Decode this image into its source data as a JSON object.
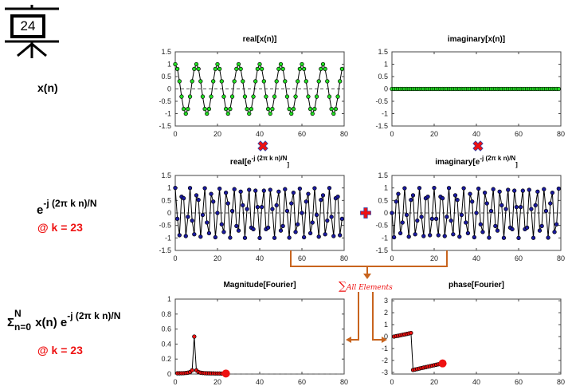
{
  "slide": {
    "number": "24",
    "icon": "presentation-board-icon"
  },
  "row_labels": {
    "xn": "x(n)",
    "basis_base": "e",
    "basis_exp": "-j (2π k n)/N",
    "basis_k": "@ k = 23",
    "sum_sigma": "Σ",
    "sum_upper": "N",
    "sum_lower": "n=0",
    "sum_body": " x(n) e",
    "sum_exp": "-j (2π k n)/N",
    "sum_k": "@ k = 23"
  },
  "operators": {
    "multiply_icon": "multiply-x-icon",
    "plus_icon": "plus-icon",
    "sum_label": "All Elements",
    "sum_symbol": "∑"
  },
  "colors": {
    "green": "#22dd22",
    "blue": "#1a1aa0",
    "red": "#ee1111",
    "orange": "#c8641e"
  },
  "chart_data": [
    {
      "id": "real_x",
      "type": "line",
      "title": "real[x(n)]",
      "series": [
        {
          "name": "real x(n)",
          "color": "#22dd22",
          "freq_cycles": 8,
          "N": 80,
          "func": "cos"
        }
      ],
      "xlim": [
        0,
        80
      ],
      "ylim": [
        -1.5,
        1.5
      ],
      "xticks": [
        "0",
        "20",
        "40",
        "60",
        "80"
      ],
      "yticks": [
        "1.5",
        "1",
        "0.5",
        "0",
        "-0.5",
        "-1",
        "-1.5"
      ],
      "zero_line": true
    },
    {
      "id": "imag_x",
      "type": "line",
      "title": "imaginary[x(n)]",
      "series": [
        {
          "name": "imag x(n)",
          "color": "#22dd22",
          "freq_cycles": 0,
          "N": 80,
          "func": "zero"
        }
      ],
      "xlim": [
        0,
        80
      ],
      "ylim": [
        -1.5,
        1.5
      ],
      "xticks": [
        "0",
        "20",
        "40",
        "60",
        "80"
      ],
      "yticks": [
        "1.5",
        "1",
        "0.5",
        "0",
        "-0.5",
        "-1",
        "-1.5"
      ],
      "zero_line": true
    },
    {
      "id": "real_basis",
      "type": "line",
      "title_pre": "real[e",
      "title_sup": "-j (2π k n)/N",
      "title_post": "]",
      "series": [
        {
          "name": "real basis",
          "color": "#1a1aa0",
          "freq_cycles": 23,
          "N": 80,
          "func": "cos"
        }
      ],
      "xlim": [
        0,
        80
      ],
      "ylim": [
        -1.5,
        1.5
      ],
      "xticks": [
        "0",
        "20",
        "40",
        "60",
        "80"
      ],
      "yticks": [
        "1.5",
        "1",
        "0.5",
        "0",
        "-0.5",
        "-1",
        "-1.5"
      ],
      "zero_line": true
    },
    {
      "id": "imag_basis",
      "type": "line",
      "title_pre": "imaginary[e",
      "title_sup": "-j (2π k n)/N",
      "title_post": "]",
      "series": [
        {
          "name": "imag basis",
          "color": "#1a1aa0",
          "freq_cycles": 23,
          "N": 80,
          "func": "-sin"
        }
      ],
      "xlim": [
        0,
        80
      ],
      "ylim": [
        -1.5,
        1.5
      ],
      "xticks": [
        "0",
        "20",
        "40",
        "60",
        "80"
      ],
      "yticks": [
        "1.5",
        "1",
        "0.5",
        "0",
        "-0.5",
        "-1",
        "-1.5"
      ],
      "zero_line": true
    },
    {
      "id": "magnitude",
      "type": "line",
      "title": "Magnitude[Fourier]",
      "x": [
        1,
        2,
        3,
        4,
        5,
        6,
        7,
        8,
        9,
        10,
        11,
        12,
        13,
        14,
        15,
        16,
        17,
        18,
        19,
        20,
        21,
        22,
        23,
        24
      ],
      "series": [
        {
          "name": "magnitude",
          "color": "#ee1111",
          "values": [
            0.01,
            0.01,
            0.011,
            0.012,
            0.014,
            0.018,
            0.026,
            0.05,
            0.5,
            0.05,
            0.026,
            0.018,
            0.014,
            0.012,
            0.011,
            0.01,
            0.009,
            0.009,
            0.008,
            0.008,
            0.008,
            0.007,
            0.007,
            0.007
          ]
        }
      ],
      "highlight_x": 24,
      "xlim": [
        0,
        80
      ],
      "ylim": [
        0,
        1
      ],
      "xticks": [
        "0",
        "20",
        "40",
        "60",
        "80"
      ],
      "yticks": [
        "1",
        "0.8",
        "0.6",
        "0.4",
        "0.2",
        "0"
      ],
      "zero_line": true
    },
    {
      "id": "phase",
      "type": "line",
      "title": "phase[Fourier]",
      "x": [
        1,
        2,
        3,
        4,
        5,
        6,
        7,
        8,
        9,
        10,
        11,
        12,
        13,
        14,
        15,
        16,
        17,
        18,
        19,
        20,
        21,
        22,
        23,
        24
      ],
      "series": [
        {
          "name": "phase",
          "color": "#ee1111",
          "values": [
            0.0,
            0.04,
            0.07,
            0.11,
            0.15,
            0.18,
            0.22,
            0.26,
            0.3,
            -2.8,
            -2.76,
            -2.72,
            -2.68,
            -2.64,
            -2.6,
            -2.56,
            -2.52,
            -2.48,
            -2.44,
            -2.4,
            -2.36,
            -2.32,
            -2.28,
            -2.25
          ]
        }
      ],
      "highlight_x": 24,
      "xlim": [
        0,
        80
      ],
      "ylim": [
        -3.14,
        3.14
      ],
      "xticks": [
        "0",
        "20",
        "40",
        "60",
        "80"
      ],
      "yticks": [
        "3",
        "2",
        "1",
        "0",
        "-1",
        "-2",
        "-3"
      ],
      "ytick_values": [
        3,
        2,
        1,
        0,
        -1,
        -2,
        -3
      ],
      "zero_line": false
    }
  ]
}
